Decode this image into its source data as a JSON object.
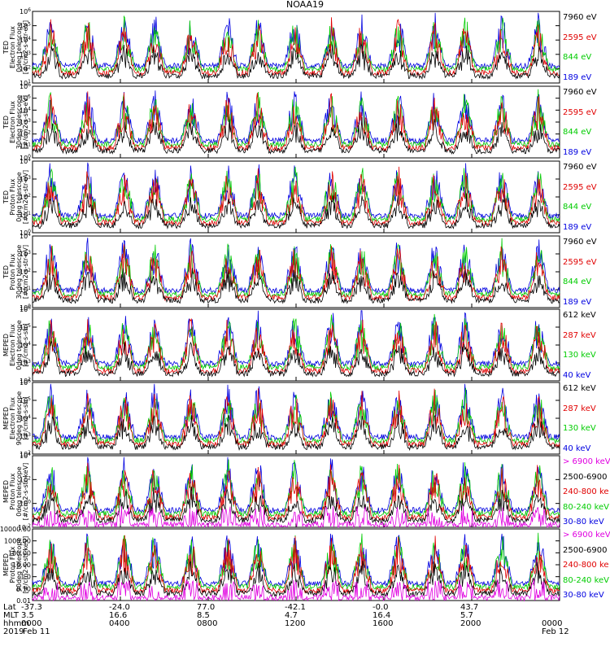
{
  "title": "NOAA19",
  "panels": [
    {
      "ylabel": [
        "TED",
        "Electron Flux",
        "0deg telescope",
        "[#/cm2-s-str-eV]"
      ],
      "ymin_exp": 1,
      "ymax_exp": 6,
      "tick_labels": [
        "10^1",
        "10^2",
        "10^3",
        "10^4",
        "10^5",
        "10^6"
      ],
      "legend": [
        {
          "text": "7960 eV",
          "color": "#000000"
        },
        {
          "text": "2595 eV",
          "color": "#e00000"
        },
        {
          "text": "844 eV",
          "color": "#00cc00"
        },
        {
          "text": "189 eV",
          "color": "#0000e0"
        }
      ]
    },
    {
      "ylabel": [
        "TED",
        "Electron Flux",
        "30deg telescope",
        "[#/cm2-s-str-eV]"
      ],
      "ymin_exp": 0,
      "ymax_exp": 6,
      "tick_labels": [
        "10^0",
        "10^1",
        "10^2",
        "10^3",
        "10^4",
        "10^5",
        "10^6"
      ],
      "legend": [
        {
          "text": "7960 eV",
          "color": "#000000"
        },
        {
          "text": "2595 eV",
          "color": "#e00000"
        },
        {
          "text": "844 eV",
          "color": "#00cc00"
        },
        {
          "text": "189 eV",
          "color": "#0000e0"
        }
      ]
    },
    {
      "ylabel": [
        "TED",
        "Proton Flux",
        "0deg telescope",
        "[#/cm2-s-str-eV]"
      ],
      "ymin_exp": 0,
      "ymax_exp": 4,
      "tick_labels": [
        "10^0",
        "10^1",
        "10^2",
        "10^3",
        "10^4"
      ],
      "legend": [
        {
          "text": "7960 eV",
          "color": "#000000"
        },
        {
          "text": "2595 eV",
          "color": "#e00000"
        },
        {
          "text": "844 eV",
          "color": "#00cc00"
        },
        {
          "text": "189 eV",
          "color": "#0000e0"
        }
      ]
    },
    {
      "ylabel": [
        "TED",
        "Proton Flux",
        "30deg telescope",
        "[#/cm2-s-str-eV]"
      ],
      "ymin_exp": 0,
      "ymax_exp": 4,
      "tick_labels": [
        "10^0",
        "10^1",
        "10^2",
        "10^3",
        "10^4"
      ],
      "legend": [
        {
          "text": "7960 eV",
          "color": "#000000"
        },
        {
          "text": "2595 eV",
          "color": "#e00000"
        },
        {
          "text": "844 eV",
          "color": "#00cc00"
        },
        {
          "text": "189 eV",
          "color": "#0000e0"
        }
      ]
    },
    {
      "ylabel": [
        "MEPED",
        "Electron Flux",
        "0deg telescope",
        "[#/cm2-s-str]"
      ],
      "ymin_exp": 2,
      "ymax_exp": 6,
      "tick_labels": [
        "10^2",
        "10^3",
        "10^4",
        "10^5",
        "10^6"
      ],
      "legend": [
        {
          "text": "612 keV",
          "color": "#000000"
        },
        {
          "text": "287 keV",
          "color": "#e00000"
        },
        {
          "text": "130 keV",
          "color": "#00cc00"
        },
        {
          "text": "40 keV",
          "color": "#0000e0"
        }
      ]
    },
    {
      "ylabel": [
        "MEPED",
        "Electron Flux",
        "90deg telescope",
        "[#/cm2-s-str]"
      ],
      "ymin_exp": 2,
      "ymax_exp": 6,
      "tick_labels": [
        "10^2",
        "10^3",
        "10^4",
        "10^5",
        "10^6"
      ],
      "legend": [
        {
          "text": "612 keV",
          "color": "#000000"
        },
        {
          "text": "287 keV",
          "color": "#e00000"
        },
        {
          "text": "130 keV",
          "color": "#00cc00"
        },
        {
          "text": "40 keV",
          "color": "#0000e0"
        }
      ]
    },
    {
      "ylabel": [
        "MEPED",
        "Proton Flux",
        "0deg telescope",
        "[#/cm2-s-str-keV]"
      ],
      "ymin_exp": -2,
      "ymax_exp": 4,
      "tick_labels": [
        "10^-2",
        "10^0",
        "10^2",
        "10^4"
      ],
      "legend": [
        {
          "text": "> 6900 keV",
          "color": "#e000e0"
        },
        {
          "text": "2500-6900",
          "color": "#000000"
        },
        {
          "text": "240-800 ke",
          "color": "#e00000"
        },
        {
          "text": "80-240 keV",
          "color": "#00cc00"
        },
        {
          "text": "30-80 keV",
          "color": "#0000e0"
        }
      ]
    },
    {
      "ylabel": [
        "MEPED",
        "Proton Flux",
        "90deg telescope",
        "[#/cm2-s-str-keV]"
      ],
      "ymin_exp": -2,
      "ymax_exp": 4,
      "tick_labels": [
        "0.01",
        "0.10",
        "1.0",
        "10.00",
        "100.00",
        "1000.00",
        "10000.00"
      ],
      "legend": [
        {
          "text": "> 6900 keV",
          "color": "#e000e0"
        },
        {
          "text": "2500-6900",
          "color": "#000000"
        },
        {
          "text": "240-800 ke",
          "color": "#e00000"
        },
        {
          "text": "80-240 keV",
          "color": "#00cc00"
        },
        {
          "text": "30-80 keV",
          "color": "#0000e0"
        }
      ]
    }
  ],
  "bottom_axis": {
    "row_labels": [
      "Lat",
      "MLT",
      "hhmm",
      "2019"
    ],
    "ticks": [
      {
        "lat": "-37.3",
        "mlt": "3.5",
        "hhmm": "0000",
        "date": "Feb 11"
      },
      {
        "lat": "-24.0",
        "mlt": "16.6",
        "hhmm": "0400",
        "date": ""
      },
      {
        "lat": "77.0",
        "mlt": "8.5",
        "hhmm": "0800",
        "date": ""
      },
      {
        "lat": "-42.1",
        "mlt": "4.7",
        "hhmm": "1200",
        "date": ""
      },
      {
        "lat": "-0.0",
        "mlt": "16.4",
        "hhmm": "1600",
        "date": ""
      },
      {
        "lat": "43.7",
        "mlt": "5.7",
        "hhmm": "2000",
        "date": ""
      },
      {
        "lat": "",
        "mlt": "",
        "hhmm": "0000",
        "date": "Feb 12"
      }
    ]
  },
  "chart_data": {
    "type": "line",
    "title": "NOAA19",
    "xlabel": "hhmm",
    "x_range": [
      "0000 Feb 11 2019",
      "0000 Feb 12 2019"
    ],
    "yscale": "log",
    "grid": false,
    "legend_placement": "right",
    "series_colors": {
      "black": "#000000",
      "red": "#e00000",
      "green": "#00cc00",
      "blue": "#0000e0",
      "magenta": "#e000e0"
    }
  }
}
